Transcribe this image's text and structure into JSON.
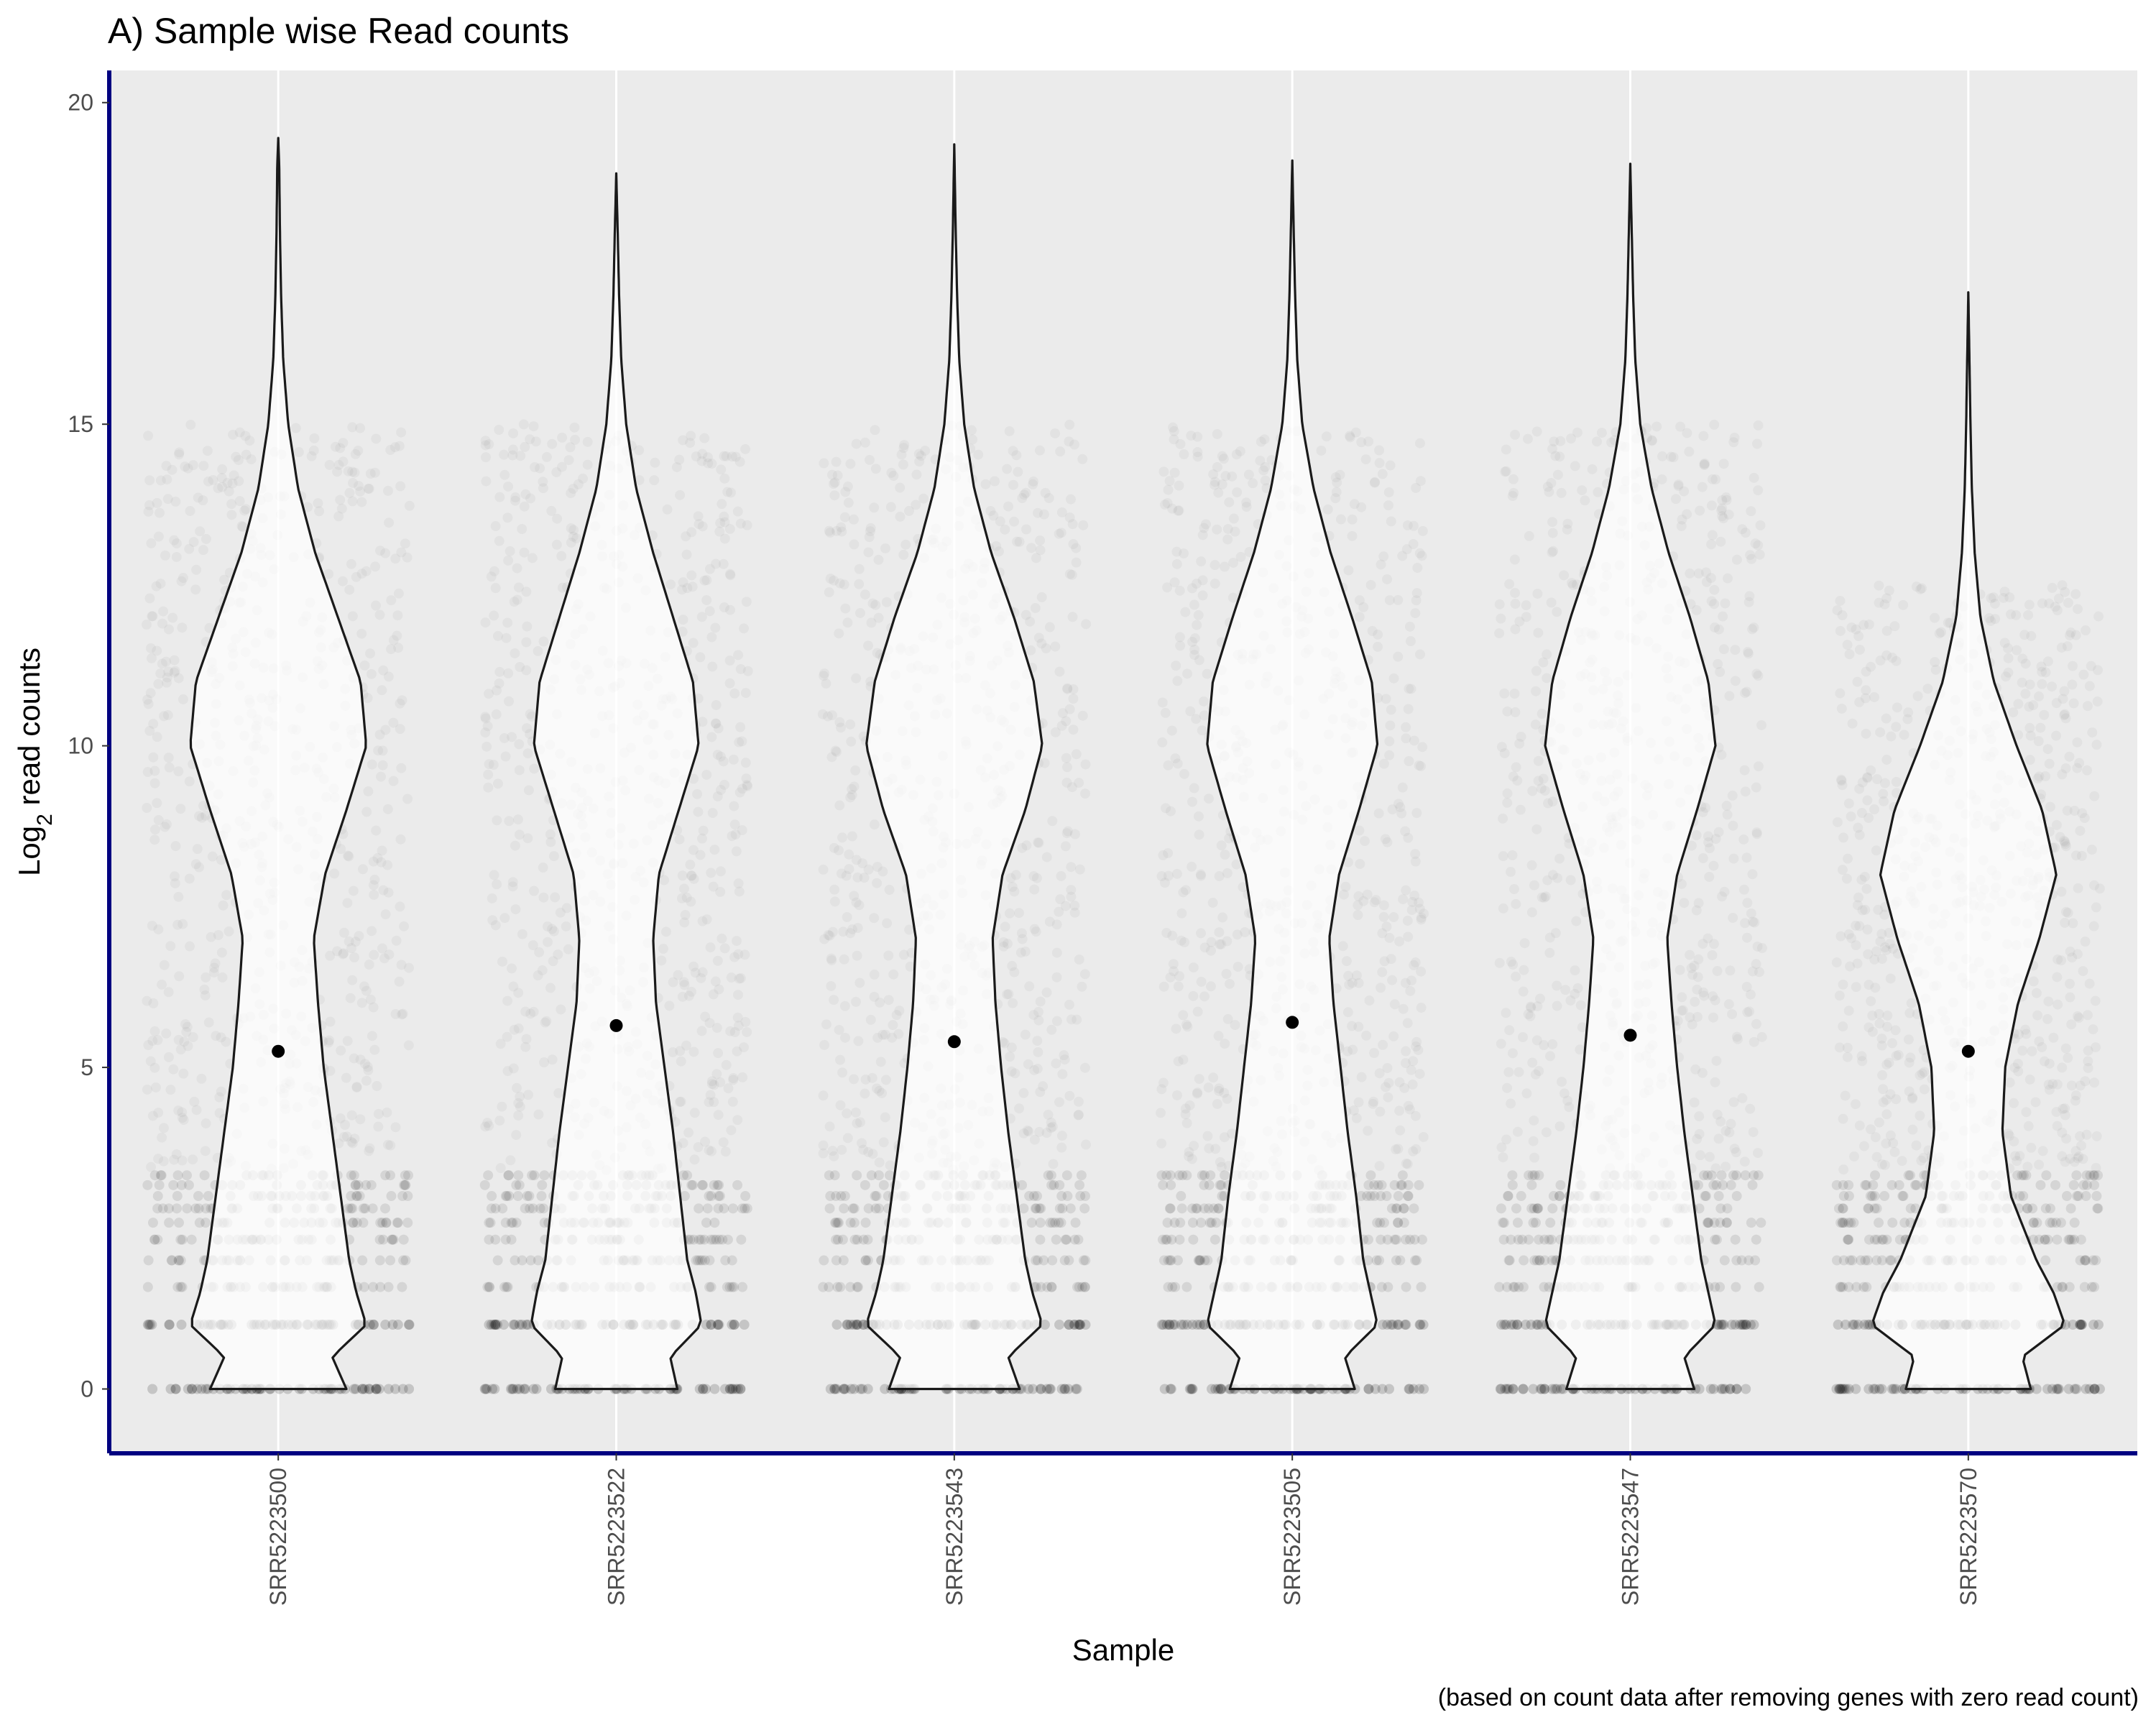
{
  "chart_data": {
    "type": "violin",
    "title": "A) Sample wise Read counts",
    "xlabel": "Sample",
    "ylabel": {
      "base": "Log",
      "subscript": "2",
      "rest": " read counts"
    },
    "caption": "(based on count data after removing genes with zero read count)",
    "ylim": [
      -1,
      20.5
    ],
    "yticks": [
      0,
      5,
      10,
      15,
      20
    ],
    "grid": true,
    "colors": {
      "panel": "#EBEBEB",
      "grid": "#FFFFFF",
      "axis_line": "#000080",
      "violin_outline": "#1a1a1a",
      "violin_fill": "#FFFFFF",
      "points": "#000000",
      "median_point": "#000000"
    },
    "categories": [
      "SRR5223500",
      "SRR5223522",
      "SRR5223543",
      "SRR5223505",
      "SRR5223547",
      "SRR5223570"
    ],
    "series": [
      {
        "sample": "SRR5223500",
        "median": 5.25,
        "max": 19.45,
        "density": [
          [
            0,
            0.48
          ],
          [
            0.5,
            0.38
          ],
          [
            1,
            0.62
          ],
          [
            1.5,
            0.55
          ],
          [
            2,
            0.5
          ],
          [
            3,
            0.44
          ],
          [
            4,
            0.38
          ],
          [
            5,
            0.32
          ],
          [
            6,
            0.28
          ],
          [
            7,
            0.25
          ],
          [
            8,
            0.33
          ],
          [
            9,
            0.48
          ],
          [
            10,
            0.62
          ],
          [
            11,
            0.58
          ],
          [
            12,
            0.42
          ],
          [
            13,
            0.26
          ],
          [
            14,
            0.14
          ],
          [
            15,
            0.07
          ],
          [
            16,
            0.035
          ],
          [
            17,
            0.02
          ],
          [
            18,
            0.012
          ],
          [
            19,
            0.007
          ],
          [
            19.45,
            0
          ]
        ]
      },
      {
        "sample": "SRR5223522",
        "median": 5.65,
        "max": 18.9,
        "density": [
          [
            0,
            0.43
          ],
          [
            0.5,
            0.38
          ],
          [
            1,
            0.6
          ],
          [
            1.5,
            0.56
          ],
          [
            2,
            0.5
          ],
          [
            3,
            0.45
          ],
          [
            4,
            0.4
          ],
          [
            5,
            0.34
          ],
          [
            6,
            0.28
          ],
          [
            7,
            0.26
          ],
          [
            8,
            0.3
          ],
          [
            9,
            0.44
          ],
          [
            10,
            0.58
          ],
          [
            11,
            0.54
          ],
          [
            12,
            0.4
          ],
          [
            13,
            0.26
          ],
          [
            14,
            0.14
          ],
          [
            15,
            0.07
          ],
          [
            16,
            0.035
          ],
          [
            17,
            0.02
          ],
          [
            18,
            0.01
          ],
          [
            18.9,
            0
          ]
        ]
      },
      {
        "sample": "SRR5223543",
        "median": 5.4,
        "max": 19.35,
        "density": [
          [
            0,
            0.46
          ],
          [
            0.5,
            0.38
          ],
          [
            1,
            0.62
          ],
          [
            1.5,
            0.55
          ],
          [
            2,
            0.5
          ],
          [
            3,
            0.44
          ],
          [
            4,
            0.38
          ],
          [
            5,
            0.33
          ],
          [
            6,
            0.29
          ],
          [
            7,
            0.27
          ],
          [
            8,
            0.34
          ],
          [
            9,
            0.5
          ],
          [
            10,
            0.62
          ],
          [
            11,
            0.56
          ],
          [
            12,
            0.42
          ],
          [
            13,
            0.26
          ],
          [
            14,
            0.14
          ],
          [
            15,
            0.07
          ],
          [
            16,
            0.035
          ],
          [
            17,
            0.02
          ],
          [
            18,
            0.01
          ],
          [
            19.35,
            0
          ]
        ]
      },
      {
        "sample": "SRR5223505",
        "median": 5.7,
        "max": 19.1,
        "density": [
          [
            0,
            0.44
          ],
          [
            0.5,
            0.37
          ],
          [
            1,
            0.6
          ],
          [
            1.5,
            0.55
          ],
          [
            2,
            0.5
          ],
          [
            3,
            0.45
          ],
          [
            4,
            0.39
          ],
          [
            5,
            0.34
          ],
          [
            6,
            0.29
          ],
          [
            7,
            0.26
          ],
          [
            8,
            0.33
          ],
          [
            9,
            0.47
          ],
          [
            10,
            0.6
          ],
          [
            11,
            0.56
          ],
          [
            12,
            0.42
          ],
          [
            13,
            0.27
          ],
          [
            14,
            0.15
          ],
          [
            15,
            0.07
          ],
          [
            16,
            0.035
          ],
          [
            17,
            0.02
          ],
          [
            18,
            0.01
          ],
          [
            19.1,
            0
          ]
        ]
      },
      {
        "sample": "SRR5223547",
        "median": 5.5,
        "max": 19.05,
        "density": [
          [
            0,
            0.45
          ],
          [
            0.5,
            0.38
          ],
          [
            1,
            0.6
          ],
          [
            1.5,
            0.55
          ],
          [
            2,
            0.5
          ],
          [
            3,
            0.44
          ],
          [
            4,
            0.38
          ],
          [
            5,
            0.33
          ],
          [
            6,
            0.29
          ],
          [
            7,
            0.26
          ],
          [
            8,
            0.33
          ],
          [
            9,
            0.47
          ],
          [
            10,
            0.6
          ],
          [
            11,
            0.55
          ],
          [
            12,
            0.42
          ],
          [
            13,
            0.27
          ],
          [
            14,
            0.15
          ],
          [
            15,
            0.07
          ],
          [
            16,
            0.035
          ],
          [
            17,
            0.02
          ],
          [
            18,
            0.01
          ],
          [
            19.05,
            0
          ]
        ]
      },
      {
        "sample": "SRR5223570",
        "median": 5.25,
        "max": 17.05,
        "density": [
          [
            0,
            0.44
          ],
          [
            0.5,
            0.38
          ],
          [
            1,
            0.68
          ],
          [
            1.5,
            0.6
          ],
          [
            2,
            0.48
          ],
          [
            3,
            0.3
          ],
          [
            4,
            0.24
          ],
          [
            5,
            0.26
          ],
          [
            6,
            0.35
          ],
          [
            7,
            0.5
          ],
          [
            8,
            0.62
          ],
          [
            9,
            0.52
          ],
          [
            10,
            0.34
          ],
          [
            11,
            0.18
          ],
          [
            12,
            0.085
          ],
          [
            13,
            0.045
          ],
          [
            14,
            0.025
          ],
          [
            15,
            0.015
          ],
          [
            16,
            0.008
          ],
          [
            17.05,
            0
          ]
        ]
      }
    ]
  }
}
